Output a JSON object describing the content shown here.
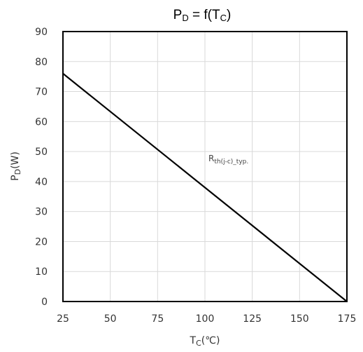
{
  "chart_data": {
    "type": "line",
    "title": {
      "main": "P",
      "main_sub": "D",
      "rest": " = f(T",
      "rest_sub": "C",
      "close": ")"
    },
    "xlabel": {
      "main": "T",
      "sub": "C",
      "rest": "(℃)"
    },
    "ylabel": {
      "main": "P",
      "sub": "D",
      "rest": "(W)"
    },
    "xlim": [
      25,
      175
    ],
    "ylim": [
      0,
      90
    ],
    "x_ticks": [
      "25",
      "50",
      "75",
      "100",
      "125",
      "150",
      "175"
    ],
    "y_ticks": [
      "0",
      "10",
      "20",
      "30",
      "40",
      "50",
      "60",
      "70",
      "80",
      "90"
    ],
    "grid": true,
    "series": [
      {
        "x": [
          25,
          175
        ],
        "y": [
          76,
          0
        ],
        "label": {
          "main": "R",
          "sub": "th(j-c)_typ."
        }
      }
    ]
  }
}
